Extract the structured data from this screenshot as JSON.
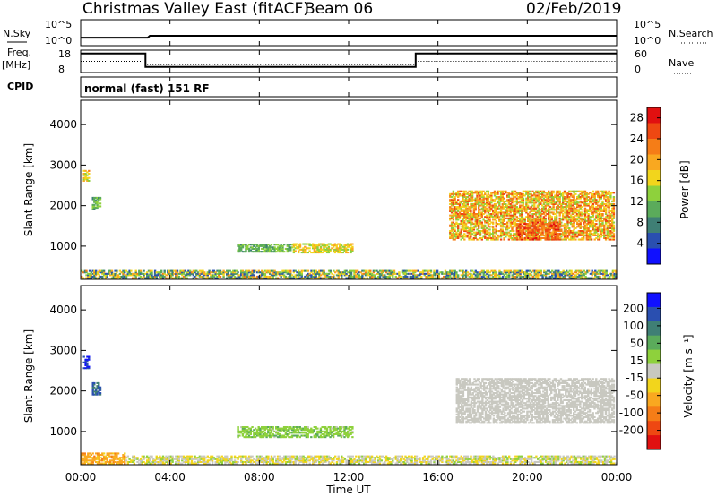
{
  "header": {
    "title": "Christmas Valley East (fitACF)",
    "beam": "Beam 06",
    "date": "02/Feb/2019"
  },
  "sky_panel": {
    "left_label": "N.Sky",
    "right_label": "N.Search",
    "left_ticks": [
      "10^5",
      "10^0"
    ],
    "right_ticks": [
      "10^5",
      "10^0"
    ]
  },
  "freq_panel": {
    "left_label_1": "Freq.",
    "left_label_2": "[MHz]",
    "right_label": "Nave",
    "left_ticks": [
      "18",
      "8"
    ],
    "right_ticks": [
      "60",
      "0"
    ]
  },
  "cpid_panel": {
    "label": "CPID",
    "text": "normal (fast) 151 RF"
  },
  "power_panel": {
    "ylabel": "Slant Range [km]",
    "colorbar_label": "Power [dB]"
  },
  "velocity_panel": {
    "ylabel": "Slant Range [km]",
    "colorbar_label": "Velocity [m s⁻¹]"
  },
  "xaxis": {
    "label": "Time UT",
    "ticks": [
      "00:00",
      "04:00",
      "08:00",
      "12:00",
      "16:00",
      "20:00",
      "00:00"
    ]
  },
  "chart_data": [
    {
      "type": "line",
      "panel": "search-noise",
      "x_range_hours": [
        0,
        24
      ],
      "scale": "log",
      "description_series": [
        {
          "x": [
            0,
            3,
            3.1,
            24
          ],
          "y_log10": [
            0.7,
            0.7,
            1.0,
            1.0
          ]
        }
      ]
    },
    {
      "type": "line",
      "panel": "frequency-nave",
      "x_range_hours": [
        0,
        24
      ],
      "ylim": [
        8,
        18
      ],
      "series": [
        {
          "x": [
            0,
            2.9,
            2.9,
            15.0,
            15.0,
            24
          ],
          "y": [
            16.5,
            16.5,
            10.5,
            10.5,
            16.5,
            16.5
          ]
        },
        {
          "x": [
            0,
            2.9,
            2.9,
            15.0,
            15.0,
            24
          ],
          "y": [
            13,
            13,
            11.5,
            11.5,
            13,
            13
          ]
        }
      ]
    },
    {
      "type": "heatmap",
      "panel": "power",
      "x_range_hours": [
        0,
        24
      ],
      "ylim": [
        180,
        4600
      ],
      "yticks": [
        1000,
        2000,
        3000,
        4000
      ],
      "colorbar": {
        "ticks": [
          "4",
          "8",
          "12",
          "16",
          "20",
          "24",
          "28"
        ],
        "range": [
          0,
          30
        ],
        "colors": [
          "#1010ff",
          "#2a4fb0",
          "#3f7f75",
          "#5bab5b",
          "#8ed13c",
          "#f2d51c",
          "#f9a820",
          "#f57d17",
          "#ee4812",
          "#e11010"
        ]
      },
      "regions": [
        {
          "t": [
            0.0,
            24.0
          ],
          "r": [
            200,
            380
          ],
          "v": [
            3,
            22
          ]
        },
        {
          "t": [
            0.1,
            0.4
          ],
          "r": [
            2600,
            2850
          ],
          "v": [
            12,
            22
          ]
        },
        {
          "t": [
            0.5,
            0.9
          ],
          "r": [
            1900,
            2200
          ],
          "v": [
            8,
            14
          ]
        },
        {
          "t": [
            7.0,
            9.5
          ],
          "r": [
            850,
            1050
          ],
          "v": [
            8,
            14
          ]
        },
        {
          "t": [
            9.5,
            12.2
          ],
          "r": [
            830,
            1050
          ],
          "v": [
            12,
            20
          ]
        },
        {
          "t": [
            16.5,
            23.9
          ],
          "r": [
            1150,
            2350
          ],
          "v": [
            12,
            26
          ]
        },
        {
          "t": [
            19.5,
            21.5
          ],
          "r": [
            1150,
            1600
          ],
          "v": [
            20,
            28
          ]
        }
      ]
    },
    {
      "type": "heatmap",
      "panel": "velocity",
      "x_range_hours": [
        0,
        24
      ],
      "ylim": [
        180,
        4600
      ],
      "yticks": [
        1000,
        2000,
        3000,
        4000
      ],
      "colorbar": {
        "ticks": [
          "200",
          "100",
          "50",
          "15",
          "-15",
          "-50",
          "-100",
          "-200"
        ],
        "range": [
          -250,
          250
        ],
        "colors": [
          "#e11010",
          "#ee4812",
          "#f57d17",
          "#f9a820",
          "#f2d51c",
          "#c8c8c0",
          "#8ed13c",
          "#5bab5b",
          "#3f7f75",
          "#2a4fb0",
          "#1010ff"
        ]
      },
      "regions": [
        {
          "t": [
            0.0,
            2.0
          ],
          "r": [
            200,
            450
          ],
          "v": [
            -120,
            -60
          ]
        },
        {
          "t": [
            2.0,
            24.0
          ],
          "r": [
            200,
            380
          ],
          "v": [
            -60,
            40
          ]
        },
        {
          "t": [
            0.1,
            0.4
          ],
          "r": [
            2550,
            2850
          ],
          "v": [
            180,
            230
          ]
        },
        {
          "t": [
            0.5,
            0.9
          ],
          "r": [
            1900,
            2200
          ],
          "v": [
            120,
            200
          ]
        },
        {
          "t": [
            7.0,
            12.2
          ],
          "r": [
            850,
            1100
          ],
          "v": [
            20,
            80
          ]
        },
        {
          "t": [
            16.8,
            23.9
          ],
          "r": [
            1200,
            2300
          ],
          "v": [
            -10,
            10
          ]
        }
      ]
    }
  ]
}
